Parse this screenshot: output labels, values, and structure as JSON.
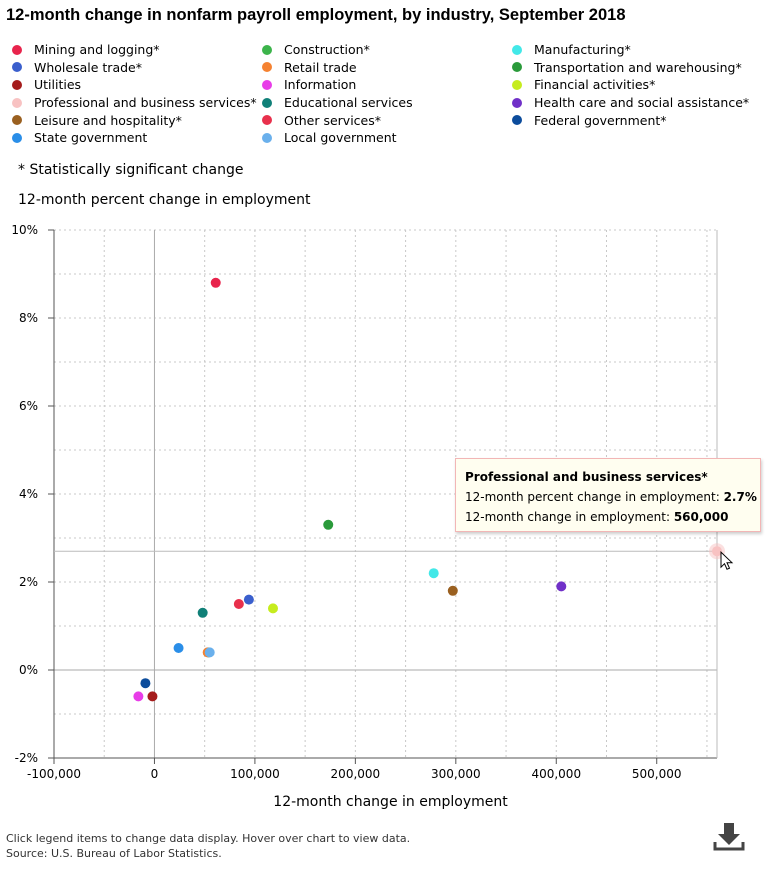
{
  "title": "12-month change in nonfarm payroll employment, by industry, September 2018",
  "legend": [
    {
      "label": "Mining and logging*",
      "color": "#e8244c"
    },
    {
      "label": "Construction*",
      "color": "#3cb44b"
    },
    {
      "label": "Manufacturing*",
      "color": "#42e8e8"
    },
    {
      "label": "Wholesale trade*",
      "color": "#3a5fcd"
    },
    {
      "label": "Retail trade",
      "color": "#f58231"
    },
    {
      "label": "Transportation and warehousing*",
      "color": "#2a9a3a"
    },
    {
      "label": "Utilities",
      "color": "#a51c1c"
    },
    {
      "label": "Information",
      "color": "#e83de8"
    },
    {
      "label": "Financial activities*",
      "color": "#c6ec1e"
    },
    {
      "label": "Professional and business services*",
      "color": "#f8c2c2"
    },
    {
      "label": "Educational services",
      "color": "#108078"
    },
    {
      "label": "Health care and social assistance*",
      "color": "#7030c8"
    },
    {
      "label": "Leisure and hospitality*",
      "color": "#9a6020"
    },
    {
      "label": "Other services*",
      "color": "#e8304c"
    },
    {
      "label": "Federal government*",
      "color": "#0c4c9c"
    },
    {
      "label": "State government",
      "color": "#2a8ee8"
    },
    {
      "label": "Local government",
      "color": "#6ab0ec"
    }
  ],
  "note": "* Statistically significant change",
  "footer": {
    "line1": "Click legend items to change data display. Hover over chart to view data.",
    "line2": "Source: U.S. Bureau of Labor Statistics."
  },
  "download_icon": "download-icon",
  "tooltip": {
    "title": "Professional and business services*",
    "row1_label": "12-month percent change in employment: ",
    "row1_value": "2.7%",
    "row2_label": "12-month change in employment: ",
    "row2_value": "560,000"
  },
  "chart_data": {
    "type": "scatter",
    "title": "12-month change in nonfarm payroll employment, by industry, September 2018",
    "xlabel": "12-month change in employment",
    "ylabel": "12-month percent change in employment",
    "xlim": [
      -100000,
      560000
    ],
    "ylim": [
      -2,
      10
    ],
    "x_ticks": [
      -100000,
      0,
      100000,
      200000,
      300000,
      400000,
      500000
    ],
    "x_tick_labels": [
      "-100,000",
      "0",
      "100,000",
      "200,000",
      "300,000",
      "400,000",
      "500,000"
    ],
    "y_ticks": [
      -2,
      0,
      2,
      4,
      6,
      8,
      10
    ],
    "y_tick_labels": [
      "-2%",
      "0%",
      "2%",
      "4%",
      "6%",
      "8%",
      "10%"
    ],
    "grid": true,
    "crosshair": {
      "x": 560000,
      "y": 2.7
    },
    "points": [
      {
        "name": "Mining and logging*",
        "x": 61000,
        "y": 8.8,
        "color": "#e8244c"
      },
      {
        "name": "Construction*",
        "x": 54000,
        "y": 0.4,
        "color": "#3cb44b"
      },
      {
        "name": "Manufacturing*",
        "x": 278000,
        "y": 2.2,
        "color": "#42e8e8"
      },
      {
        "name": "Wholesale trade*",
        "x": 94000,
        "y": 1.6,
        "color": "#3a5fcd"
      },
      {
        "name": "Retail trade",
        "x": 53000,
        "y": 0.4,
        "color": "#f58231"
      },
      {
        "name": "Transportation and warehousing*",
        "x": 173000,
        "y": 3.3,
        "color": "#2a9a3a"
      },
      {
        "name": "Utilities",
        "x": -2000,
        "y": -0.6,
        "color": "#a51c1c"
      },
      {
        "name": "Information",
        "x": -16000,
        "y": -0.6,
        "color": "#e83de8"
      },
      {
        "name": "Financial activities*",
        "x": 118000,
        "y": 1.4,
        "color": "#c6ec1e"
      },
      {
        "name": "Professional and business services*",
        "x": 560000,
        "y": 2.7,
        "color": "#f8c2c2"
      },
      {
        "name": "Educational services",
        "x": 48000,
        "y": 1.3,
        "color": "#108078"
      },
      {
        "name": "Health care and social assistance*",
        "x": 405000,
        "y": 1.9,
        "color": "#7030c8"
      },
      {
        "name": "Leisure and hospitality*",
        "x": 297000,
        "y": 1.8,
        "color": "#9a6020"
      },
      {
        "name": "Other services*",
        "x": 84000,
        "y": 1.5,
        "color": "#e8304c"
      },
      {
        "name": "Federal government*",
        "x": -9000,
        "y": -0.3,
        "color": "#0c4c9c"
      },
      {
        "name": "State government",
        "x": 24000,
        "y": 0.5,
        "color": "#2a8ee8"
      },
      {
        "name": "Local government",
        "x": 55000,
        "y": 0.4,
        "color": "#6ab0ec"
      }
    ]
  }
}
